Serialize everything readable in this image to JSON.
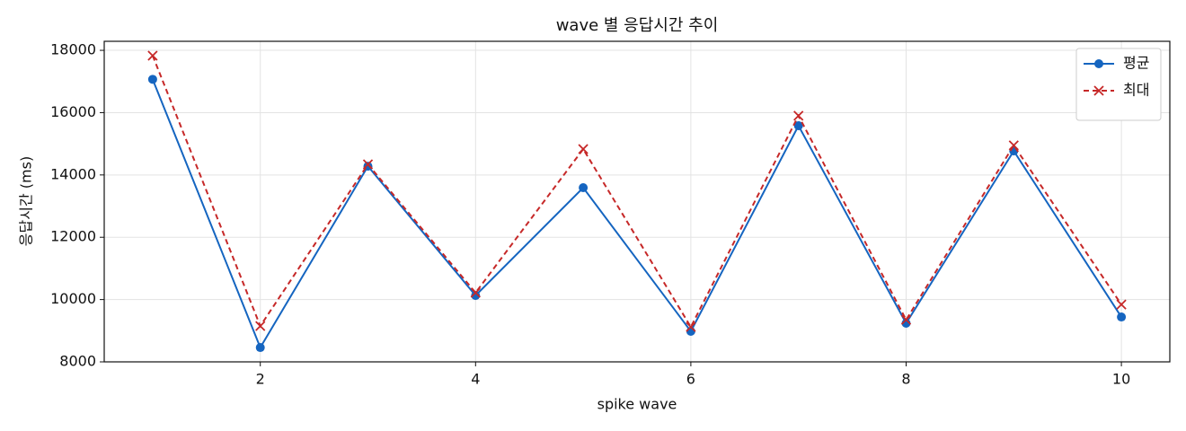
{
  "chart_data": {
    "type": "line",
    "title": "wave 별 응답시간 추이",
    "xlabel": "spike wave",
    "ylabel": "응답시간 (ms)",
    "x": [
      1,
      2,
      3,
      4,
      5,
      6,
      7,
      8,
      9,
      10
    ],
    "series": [
      {
        "name": "평균",
        "color": "#1565c0",
        "marker": "o",
        "linestyle": "solid",
        "values": [
          17070,
          8460,
          14280,
          10130,
          13590,
          8980,
          15580,
          9240,
          14770,
          9440
        ]
      },
      {
        "name": "최대",
        "color": "#c62828",
        "marker": "x",
        "linestyle": "dashed",
        "values": [
          17830,
          9150,
          14340,
          10220,
          14830,
          9120,
          15900,
          9350,
          14950,
          9840
        ]
      }
    ],
    "xlim": [
      0.55,
      10.45
    ],
    "xticks": [
      2,
      4,
      6,
      8,
      10
    ],
    "ylim": [
      8000,
      18290
    ],
    "yticks": [
      8000,
      10000,
      12000,
      14000,
      16000,
      18000
    ],
    "grid": true,
    "legend": "upper right"
  }
}
